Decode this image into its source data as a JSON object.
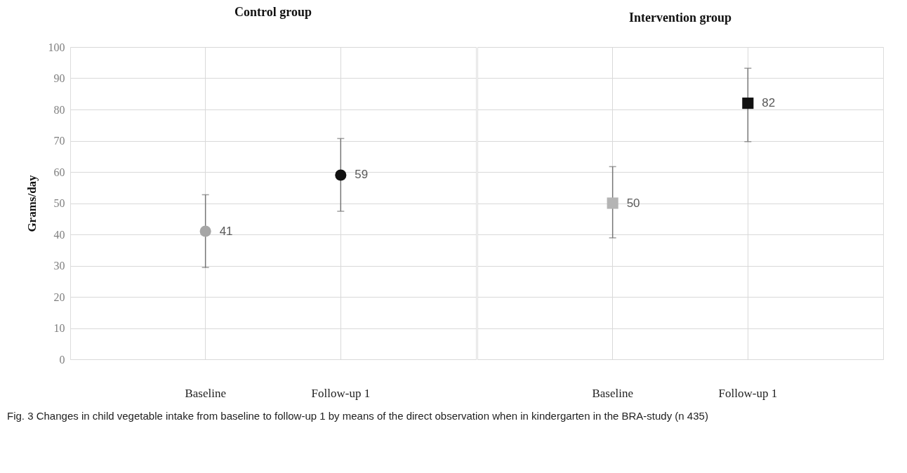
{
  "chart_data": [
    {
      "type": "scatter",
      "title": "Control group",
      "ylabel": "Grams/day",
      "categories": [
        "Baseline",
        "Follow-up 1"
      ],
      "values": [
        41,
        59
      ],
      "colors": [
        "#a6a6a6",
        "#111111"
      ],
      "errors": [
        [
          29.4,
          52.7
        ],
        [
          47.4,
          70.7
        ]
      ],
      "marker": "circle",
      "data_labels": true,
      "ylim": [
        0,
        100
      ],
      "yticks": [
        0,
        10,
        20,
        30,
        40,
        50,
        60,
        70,
        80,
        90,
        100
      ],
      "grid": true,
      "annotations": [
        "Fig. 3 Changes in child vegetable intake from baseline to follow-up 1 by means of the direct observation when in kindergarten in the BRA-study (n 435)"
      ]
    },
    {
      "type": "scatter",
      "title": "Intervention group",
      "categories": [
        "Baseline",
        "Follow-up 1"
      ],
      "values": [
        50,
        82
      ],
      "colors": [
        "#b4b4b4",
        "#111111"
      ],
      "errors": [
        [
          38.9,
          61.7
        ],
        [
          69.7,
          93.2
        ]
      ],
      "marker": "square",
      "data_labels": true,
      "ylim": [
        0,
        100
      ],
      "yticks": [
        0,
        10,
        20,
        30,
        40,
        50,
        60,
        70,
        80,
        90,
        100
      ],
      "grid": true,
      "tick_labels": "x"
    }
  ]
}
